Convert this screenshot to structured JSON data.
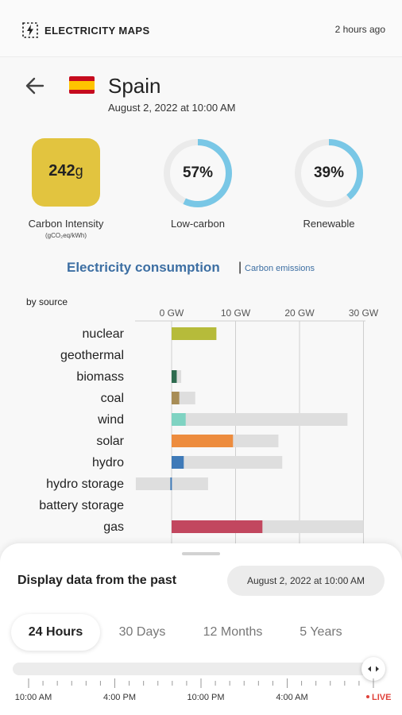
{
  "header": {
    "app_title": "ELECTRICITY MAPS",
    "updated": "2 hours ago"
  },
  "zone": {
    "name": "Spain",
    "datetime": "August 2, 2022 at 10:00 AM",
    "flag_colors": [
      "#c60b1e",
      "#ffc400",
      "#c60b1e"
    ]
  },
  "metrics": {
    "carbon_intensity": {
      "value": "242",
      "unit": "g",
      "label": "Carbon Intensity",
      "sublabel": "(gCO₂eq/kWh)",
      "color": "#e2c43f"
    },
    "low_carbon": {
      "value": "57%",
      "fraction": 0.57,
      "label": "Low-carbon"
    },
    "renewable": {
      "value": "39%",
      "fraction": 0.39,
      "label": "Renewable"
    },
    "ring_color": "#79c7e6",
    "ring_track_color": "#ebebeb"
  },
  "tabs": {
    "consumption": "Electricity consumption",
    "separator": "|",
    "emissions": "Carbon emissions"
  },
  "chart_label": "by source",
  "chart_data": {
    "type": "bar",
    "orientation": "horizontal",
    "xlabel": "",
    "ylabel": "",
    "xlim": [
      -6,
      30
    ],
    "ticks": [
      0,
      10,
      20,
      30
    ],
    "tick_labels": [
      "0 GW",
      "10 GW",
      "20 GW",
      "30 GW"
    ],
    "categories": [
      "nuclear",
      "geothermal",
      "biomass",
      "coal",
      "wind",
      "solar",
      "hydro",
      "hydro storage",
      "battery storage",
      "gas"
    ],
    "values": [
      7.0,
      0,
      0.8,
      1.2,
      2.2,
      9.6,
      1.9,
      -0.2,
      0,
      14.2
    ],
    "capacity": [
      7.0,
      0,
      1.5,
      3.7,
      27.5,
      16.7,
      17.3,
      5.7,
      0,
      30.0
    ],
    "negative_capacity": [
      0,
      0,
      0,
      0,
      0,
      0,
      0,
      -5.6,
      0,
      0
    ],
    "colors": [
      "#b6bb3a",
      "#c0504d",
      "#2e6b4f",
      "#a88d56",
      "#7fd3c2",
      "#ed8c3e",
      "#3f7ab8",
      "#3f7ab8",
      "#999999",
      "#c2475f"
    ],
    "capacity_color": "#dedede"
  },
  "bottom_sheet": {
    "title": "Display data from the past",
    "selected_date": "August 2, 2022 at 10:00 AM",
    "ranges": [
      "24 Hours",
      "30 Days",
      "12 Months",
      "5 Years"
    ],
    "active_range": "24 Hours",
    "timeline_labels": [
      "10:00 AM",
      "4:00 PM",
      "10:00 PM",
      "4:00 AM"
    ],
    "live_label": "LIVE",
    "live_color": "#e0413a"
  }
}
